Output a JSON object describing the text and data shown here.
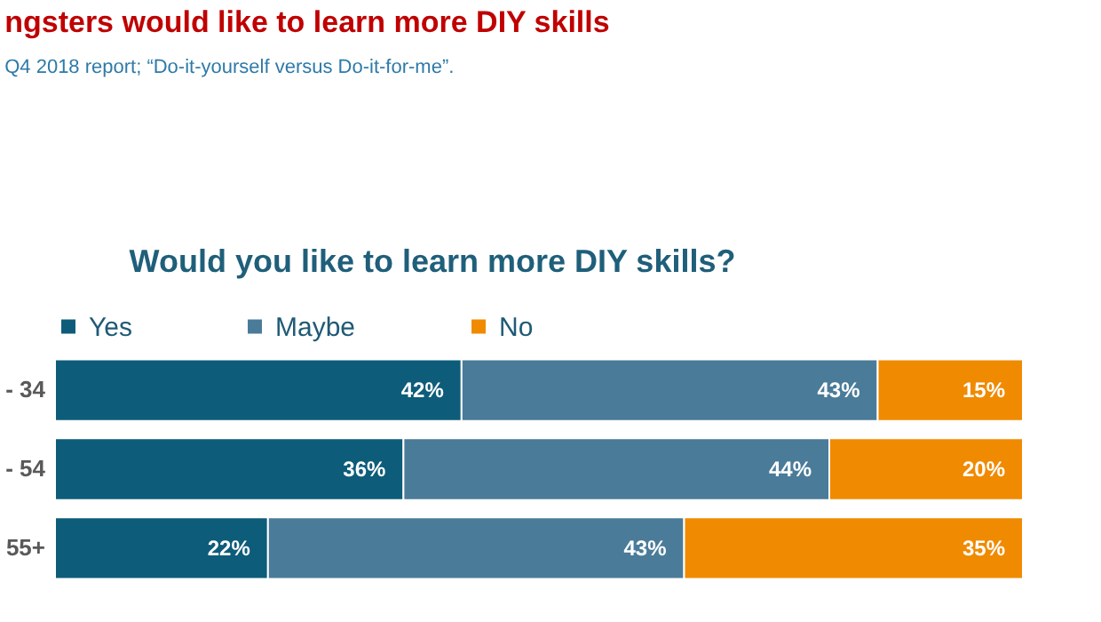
{
  "chart_data": {
    "type": "bar",
    "orientation": "horizontal",
    "stacked": true,
    "title": "ngsters would like to learn more DIY skills",
    "subtitle": "Q4 2018 report; “Do-it-yourself versus Do-it-for-me”.",
    "annotations": [
      "Would you like to learn more DIY skills?"
    ],
    "categories": [
      "- 34",
      "- 54",
      "55+"
    ],
    "legend": "top",
    "series": [
      {
        "name": "Yes",
        "color": "#0d5c7a",
        "values": [
          42,
          36,
          22
        ],
        "value_labels": [
          "42%",
          "36%",
          "22%"
        ]
      },
      {
        "name": "Maybe",
        "color": "#4a7b99",
        "values": [
          43,
          44,
          43
        ],
        "value_labels": [
          "43%",
          "44%",
          "43%"
        ]
      },
      {
        "name": "No",
        "color": "#f08a00",
        "values": [
          15,
          20,
          35
        ],
        "value_labels": [
          "15%",
          "20%",
          "35%"
        ]
      }
    ]
  }
}
